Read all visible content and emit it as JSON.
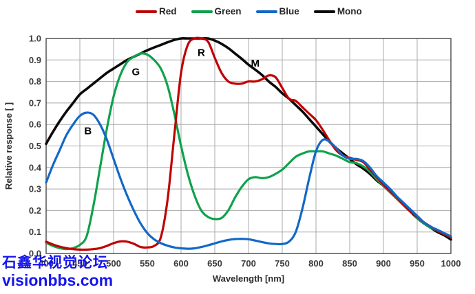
{
  "legend": {
    "items": [
      {
        "label": "Red",
        "color": "#c00000"
      },
      {
        "label": "Green",
        "color": "#0ea24c"
      },
      {
        "label": "Blue",
        "color": "#1268c6"
      },
      {
        "label": "Mono",
        "color": "#0a0a0a"
      }
    ]
  },
  "chart_data": {
    "type": "line",
    "xlabel": "Wavelength [nm]",
    "ylabel": "Relative response [ ]",
    "xlim": [
      400,
      1000
    ],
    "ylim": [
      0.0,
      1.0
    ],
    "grid": true,
    "legend_position": "top",
    "xtick_labels": [
      "400",
      "450",
      "500",
      "550",
      "600",
      "650",
      "700",
      "750",
      "800",
      "850",
      "900",
      "950",
      "1000"
    ],
    "ytick_labels": [
      "0.0",
      "0.1",
      "0.2",
      "0.3",
      "0.4",
      "0.5",
      "0.6",
      "0.7",
      "0.8",
      "0.9",
      "1.0"
    ],
    "x": [
      400,
      410,
      420,
      430,
      440,
      450,
      460,
      470,
      480,
      490,
      500,
      510,
      520,
      530,
      540,
      550,
      560,
      570,
      580,
      590,
      600,
      610,
      620,
      630,
      640,
      650,
      660,
      670,
      680,
      690,
      700,
      710,
      720,
      730,
      740,
      750,
      760,
      770,
      780,
      790,
      800,
      810,
      820,
      830,
      840,
      850,
      860,
      870,
      880,
      890,
      900,
      910,
      920,
      930,
      940,
      950,
      960,
      970,
      980,
      990,
      1000
    ],
    "series": [
      {
        "name": "Red",
        "color": "#c00000",
        "values": [
          0.055,
          0.042,
          0.032,
          0.025,
          0.02,
          0.018,
          0.018,
          0.02,
          0.025,
          0.035,
          0.048,
          0.056,
          0.055,
          0.045,
          0.03,
          0.028,
          0.035,
          0.075,
          0.25,
          0.55,
          0.84,
          0.97,
          1.0,
          1.0,
          0.985,
          0.91,
          0.84,
          0.8,
          0.79,
          0.79,
          0.8,
          0.8,
          0.81,
          0.828,
          0.82,
          0.77,
          0.72,
          0.71,
          0.68,
          0.65,
          0.62,
          0.575,
          0.525,
          0.48,
          0.455,
          0.445,
          0.435,
          0.425,
          0.39,
          0.355,
          0.32,
          0.29,
          0.26,
          0.225,
          0.195,
          0.17,
          0.145,
          0.125,
          0.105,
          0.09,
          0.075
        ]
      },
      {
        "name": "Green",
        "color": "#0ea24c",
        "values": [
          0.05,
          0.035,
          0.025,
          0.02,
          0.025,
          0.04,
          0.08,
          0.22,
          0.4,
          0.58,
          0.73,
          0.83,
          0.89,
          0.915,
          0.93,
          0.925,
          0.9,
          0.86,
          0.78,
          0.65,
          0.5,
          0.37,
          0.27,
          0.2,
          0.17,
          0.16,
          0.165,
          0.2,
          0.26,
          0.31,
          0.345,
          0.355,
          0.35,
          0.355,
          0.37,
          0.39,
          0.42,
          0.45,
          0.465,
          0.475,
          0.475,
          0.475,
          0.465,
          0.455,
          0.44,
          0.425,
          0.42,
          0.405,
          0.38,
          0.345,
          0.315,
          0.285,
          0.255,
          0.225,
          0.2,
          0.165,
          0.14,
          0.12,
          0.105,
          0.09,
          0.075
        ]
      },
      {
        "name": "Blue",
        "color": "#1268c6",
        "values": [
          0.33,
          0.41,
          0.48,
          0.55,
          0.6,
          0.64,
          0.655,
          0.645,
          0.6,
          0.53,
          0.44,
          0.35,
          0.27,
          0.2,
          0.14,
          0.095,
          0.066,
          0.048,
          0.036,
          0.028,
          0.024,
          0.022,
          0.024,
          0.03,
          0.038,
          0.047,
          0.056,
          0.063,
          0.067,
          0.068,
          0.066,
          0.06,
          0.053,
          0.047,
          0.044,
          0.044,
          0.055,
          0.1,
          0.21,
          0.35,
          0.475,
          0.528,
          0.52,
          0.49,
          0.455,
          0.44,
          0.44,
          0.43,
          0.4,
          0.36,
          0.33,
          0.3,
          0.265,
          0.235,
          0.205,
          0.175,
          0.145,
          0.125,
          0.11,
          0.095,
          0.08
        ]
      },
      {
        "name": "Mono",
        "color": "#0a0a0a",
        "values": [
          0.51,
          0.565,
          0.615,
          0.66,
          0.7,
          0.74,
          0.765,
          0.79,
          0.815,
          0.84,
          0.86,
          0.88,
          0.9,
          0.915,
          0.93,
          0.945,
          0.958,
          0.97,
          0.982,
          0.993,
          1.0,
          1.0,
          1.0,
          1.0,
          1.0,
          0.99,
          0.975,
          0.955,
          0.93,
          0.905,
          0.878,
          0.855,
          0.83,
          0.8,
          0.775,
          0.745,
          0.72,
          0.69,
          0.66,
          0.625,
          0.59,
          0.555,
          0.52,
          0.49,
          0.465,
          0.44,
          0.415,
          0.395,
          0.37,
          0.34,
          0.315,
          0.285,
          0.255,
          0.225,
          0.195,
          0.165,
          0.14,
          0.12,
          0.1,
          0.085,
          0.065
        ]
      }
    ],
    "annotations": [
      {
        "text": "B",
        "wavelength": 462,
        "value": 0.57
      },
      {
        "text": "G",
        "wavelength": 533,
        "value": 0.845
      },
      {
        "text": "R",
        "wavelength": 630,
        "value": 0.935
      },
      {
        "text": "M",
        "wavelength": 710,
        "value": 0.885
      }
    ]
  },
  "watermark": {
    "line1": "石鑫华视觉论坛",
    "line2": "visionbbs.com",
    "color": "#1414ee"
  }
}
